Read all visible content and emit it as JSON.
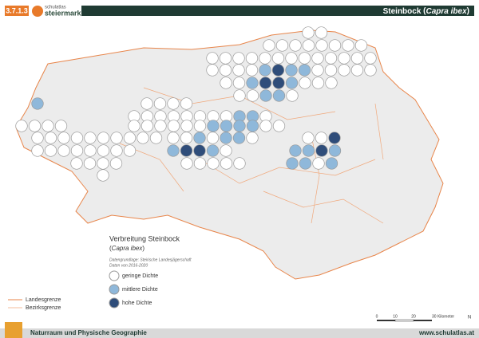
{
  "header": {
    "chapter": "3.7.1.3",
    "logo_top": "schulatlas",
    "logo_bottom": "steiermark",
    "title": "Steinbock",
    "title_latin": "Capra ibex"
  },
  "legend": {
    "title": "Verbreitung Steinbock",
    "subtitle": "Capra ibex",
    "source": "Datengrundlage: Steirische Landesjägerschaft",
    "period": "Daten von 2016-2020",
    "items": [
      "geringe Dichte",
      "mittlere Dichte",
      "hohe Dichte"
    ]
  },
  "boundaries": [
    "Landesgrenze",
    "Bezirksgrenze"
  ],
  "scale": {
    "labels": [
      "0",
      "10",
      "20",
      "30 Kilometer"
    ],
    "north": "N"
  },
  "footer": {
    "section": "Naturraum und Physische Geographie",
    "url": "www.schulatlas.at"
  }
}
